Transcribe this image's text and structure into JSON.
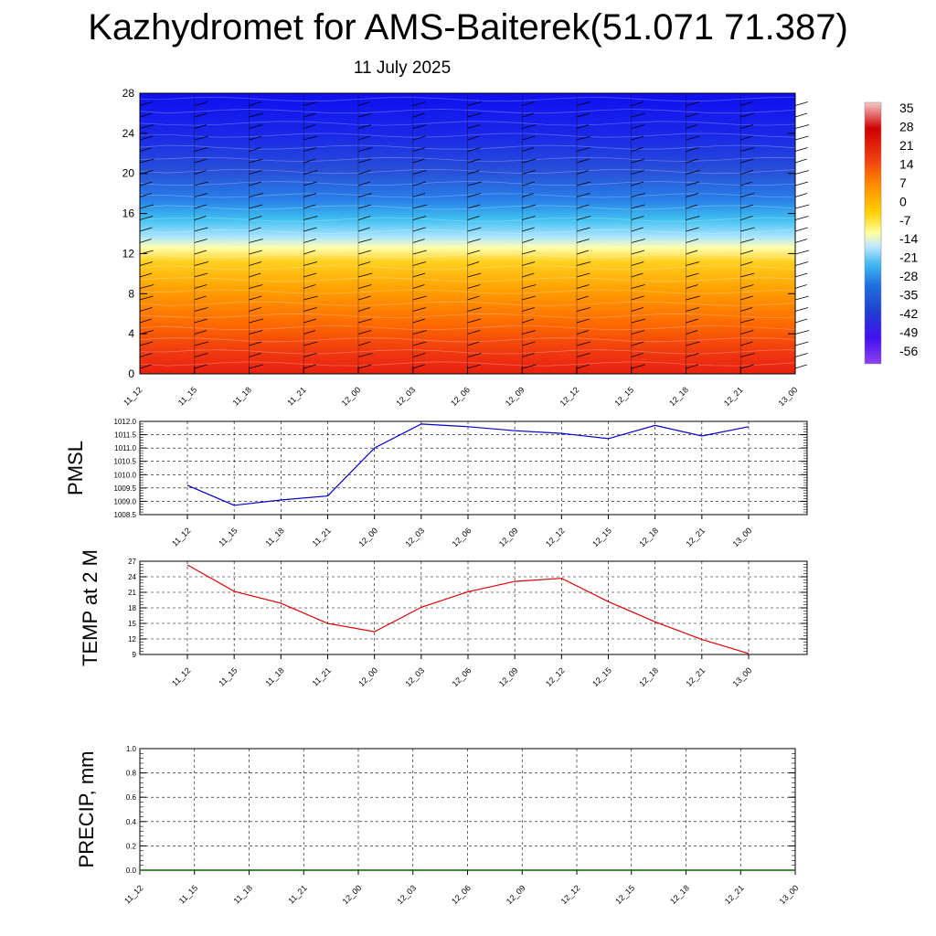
{
  "title": "Kazhydromet for AMS-Baiterek(51.071 71.387)",
  "subtitle": "11 July 2025",
  "colors": {
    "pmsl_line": "#0000cc",
    "temp_line": "#dd0000",
    "precip_line": "#006600"
  },
  "chart_data": [
    {
      "type": "heatmap",
      "x": [
        "11_12",
        "11_15",
        "11_18",
        "11_21",
        "12_00",
        "12_03",
        "12_06",
        "12_09",
        "12_12",
        "12_15",
        "12_18",
        "12_21",
        "13_00"
      ],
      "yticks": [
        0,
        4,
        8,
        12,
        16,
        20,
        24,
        28
      ],
      "ylim": [
        0,
        28
      ],
      "colorbar": {
        "labels": [
          "35",
          "28",
          "21",
          "14",
          "7",
          "0",
          "-7",
          "-14",
          "-21",
          "-28",
          "-35",
          "-42",
          "-49",
          "-56"
        ],
        "stops": [
          "#f2c4c4",
          "#d80000",
          "#e83010",
          "#ff7000",
          "#ffa000",
          "#ffd000",
          "#ffff80",
          "#a0e0ff",
          "#40b8f0",
          "#2070e0",
          "#2040d0",
          "#3020e0",
          "#5010f0",
          "#9040f0"
        ]
      },
      "barbs": true
    },
    {
      "type": "line",
      "ylabel": "PMSL",
      "x": [
        "11_12",
        "11_15",
        "11_18",
        "11_21",
        "12_00",
        "12_03",
        "12_06",
        "12_09",
        "12_12",
        "12_15",
        "12_18",
        "12_21",
        "13_00"
      ],
      "values": [
        1009.6,
        1008.85,
        1009.05,
        1009.2,
        1011.0,
        1011.9,
        1011.8,
        1011.65,
        1011.55,
        1011.35,
        1011.85,
        1011.45,
        1011.8
      ],
      "ylim": [
        1008.5,
        1012.0
      ],
      "yticks": [
        "1008.5",
        "1009.0",
        "1009.5",
        "1010.0",
        "1010.5",
        "1011.0",
        "1011.5",
        "1012.0"
      ],
      "grid": true
    },
    {
      "type": "line",
      "ylabel": "TEMP at 2 M",
      "x": [
        "11_12",
        "11_15",
        "11_18",
        "11_21",
        "12_00",
        "12_03",
        "12_06",
        "12_09",
        "12_12",
        "12_15",
        "12_18",
        "12_21",
        "13_00"
      ],
      "values": [
        26.3,
        21.2,
        18.9,
        15.0,
        13.4,
        18.1,
        21.1,
        23.1,
        23.7,
        19.2,
        15.3,
        11.9,
        9.2
      ],
      "ylim": [
        9,
        27
      ],
      "yticks": [
        "9",
        "12",
        "15",
        "18",
        "21",
        "24",
        "27"
      ],
      "grid": true
    },
    {
      "type": "line",
      "ylabel": "PRECIP, mm",
      "x": [
        "11_12",
        "11_15",
        "11_18",
        "11_21",
        "12_00",
        "12_03",
        "12_06",
        "12_09",
        "12_12",
        "12_15",
        "12_18",
        "12_21",
        "13_00"
      ],
      "values": [
        0,
        0,
        0,
        0,
        0,
        0,
        0,
        0,
        0,
        0,
        0,
        0,
        0
      ],
      "ylim": [
        0,
        1.0
      ],
      "yticks": [
        "0.0",
        "0.2",
        "0.4",
        "0.6",
        "0.8",
        "1.0"
      ],
      "grid": true
    }
  ]
}
